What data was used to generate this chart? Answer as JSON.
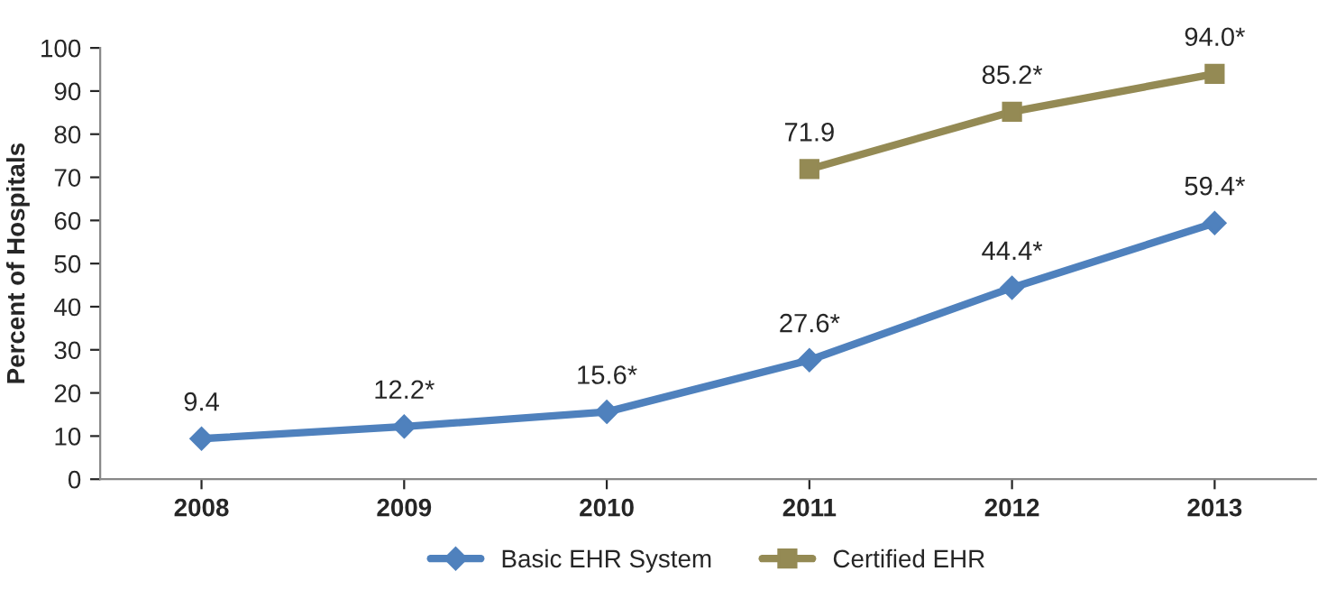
{
  "chart_data": {
    "type": "line",
    "ylabel": "Percent of Hospitals",
    "categories": [
      "2008",
      "2009",
      "2010",
      "2011",
      "2012",
      "2013"
    ],
    "series": [
      {
        "name": "Basic EHR System",
        "color": "#4f81bd",
        "marker": "diamond",
        "values": [
          9.4,
          12.2,
          15.6,
          27.6,
          44.4,
          59.4
        ],
        "value_labels": [
          "9.4",
          "12.2*",
          "15.6*",
          "27.6*",
          "44.4*",
          "59.4*"
        ]
      },
      {
        "name": "Certified EHR",
        "color": "#948a54",
        "marker": "square",
        "values": [
          null,
          null,
          null,
          71.9,
          85.2,
          94.0
        ],
        "value_labels": [
          null,
          null,
          null,
          "71.9",
          "85.2*",
          "94.0*"
        ]
      }
    ],
    "ylim": [
      0,
      100
    ],
    "yticks": [
      0,
      10,
      20,
      30,
      40,
      50,
      60,
      70,
      80,
      90,
      100
    ],
    "grid": false,
    "legend": "bottom",
    "line_style": "solid"
  }
}
